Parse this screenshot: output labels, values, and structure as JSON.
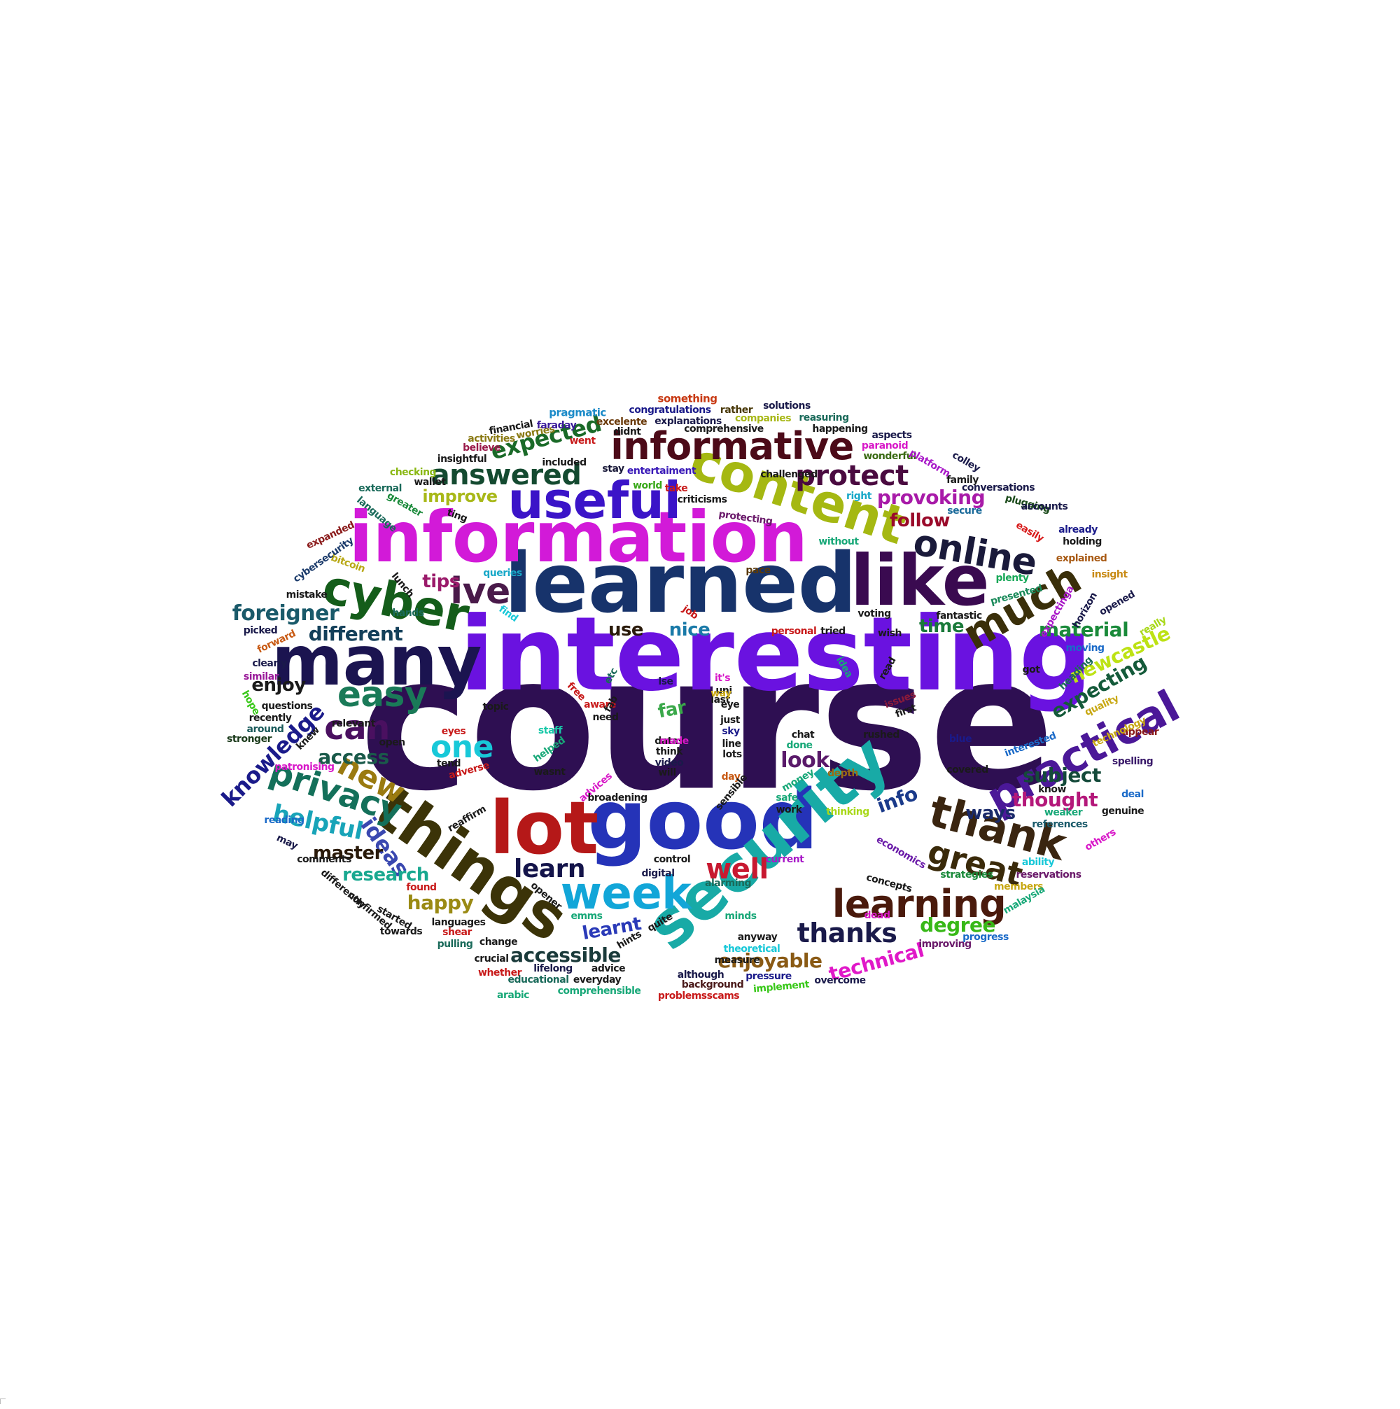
{
  "words": [
    {
      "t": "course",
      "c": "#2e0f52"
    },
    {
      "t": "interesting",
      "c": "#6a12e0"
    },
    {
      "t": "learned",
      "c": "#17336b"
    },
    {
      "t": "information",
      "c": "#d21ad8"
    },
    {
      "t": "good",
      "c": "#2533b8"
    },
    {
      "t": "security",
      "c": "#18aaa6"
    },
    {
      "t": "things",
      "c": "#3b3308"
    },
    {
      "t": "lot",
      "c": "#b51818"
    },
    {
      "t": "like",
      "c": "#3a0a50"
    },
    {
      "t": "many",
      "c": "#1b1450"
    },
    {
      "t": "useful",
      "c": "#3b14c8"
    },
    {
      "t": "content",
      "c": "#a5b812"
    },
    {
      "t": "informative",
      "c": "#4c0a18"
    },
    {
      "t": "cyber",
      "c": "#145d1a"
    },
    {
      "t": "practical",
      "c": "#4b1898"
    },
    {
      "t": "much",
      "c": "#3a2f0a"
    },
    {
      "t": "online",
      "c": "#1a1a3a"
    },
    {
      "t": "thank",
      "c": "#3a2510"
    },
    {
      "t": "week",
      "c": "#12a6d8"
    },
    {
      "t": "learning",
      "c": "#4a1a0c"
    },
    {
      "t": "easy",
      "c": "#1a7a58"
    },
    {
      "t": "ive",
      "c": "#4a1a4a"
    },
    {
      "t": "privacy",
      "c": "#14705a"
    },
    {
      "t": "can",
      "c": "#4a1060"
    },
    {
      "t": "new",
      "c": "#9a7a10"
    },
    {
      "t": "great",
      "c": "#3a2a0a"
    },
    {
      "t": "one",
      "c": "#18c8d8"
    },
    {
      "t": "protect",
      "c": "#4a0a40"
    },
    {
      "t": "answered",
      "c": "#144a30"
    },
    {
      "t": "knowledge",
      "c": "#1a1a8a"
    },
    {
      "t": "well",
      "c": "#c81830"
    },
    {
      "t": "thanks",
      "c": "#1a1a4a"
    },
    {
      "t": "learn",
      "c": "#14144a"
    },
    {
      "t": "helpful",
      "c": "#18a4b8"
    },
    {
      "t": "ideas",
      "c": "#3a48b0"
    },
    {
      "t": "expected",
      "c": "#1a6a28"
    },
    {
      "t": "provoking",
      "c": "#a81aa8"
    },
    {
      "t": "newcastle",
      "c": "#bde214"
    },
    {
      "t": "expecting",
      "c": "#145a3a"
    },
    {
      "t": "technical",
      "c": "#e018c8"
    },
    {
      "t": "foreigner",
      "c": "#1a5a6a"
    },
    {
      "t": "different",
      "c": "#14405a"
    },
    {
      "t": "material",
      "c": "#1a8a3a"
    },
    {
      "t": "thought",
      "c": "#b4187a"
    },
    {
      "t": "subject",
      "c": "#144a3a"
    },
    {
      "t": "enjoyable",
      "c": "#8a5a14"
    },
    {
      "t": "accessible",
      "c": "#1a3a3a"
    },
    {
      "t": "degree",
      "c": "#38b818"
    },
    {
      "t": "research",
      "c": "#18a890"
    },
    {
      "t": "master",
      "c": "#2a1a0a"
    },
    {
      "t": "happy",
      "c": "#9a8a14"
    },
    {
      "t": "look",
      "c": "#5a1a6a"
    },
    {
      "t": "info",
      "c": "#1a3a8a"
    },
    {
      "t": "ways",
      "c": "#1a2a6a"
    },
    {
      "t": "tips",
      "c": "#9a1a6a"
    },
    {
      "t": "access",
      "c": "#1a5a4a"
    },
    {
      "t": "enjoy",
      "c": "#1a1a1a"
    },
    {
      "t": "far",
      "c": "#3aa84a"
    },
    {
      "t": "nice",
      "c": "#1a7aa8"
    },
    {
      "t": "use",
      "c": "#2a1a0a"
    },
    {
      "t": "learnt",
      "c": "#2a3ab8"
    },
    {
      "t": "improve",
      "c": "#a8b818"
    },
    {
      "t": "follow",
      "c": "#9a0a2a"
    },
    {
      "t": "time",
      "c": "#1a7a3a"
    }
  ],
  "small_words": [
    {
      "t": "something",
      "c": "#c83a14"
    },
    {
      "t": "pragmatic",
      "c": "#1a8ac8"
    },
    {
      "t": "congratulations",
      "c": "#1a1a8a"
    },
    {
      "t": "rather",
      "c": "#4a3a0a"
    },
    {
      "t": "solutions",
      "c": "#1a1a4a"
    },
    {
      "t": "excelente",
      "c": "#6a3a0a"
    },
    {
      "t": "explanations",
      "c": "#1a1a4a"
    },
    {
      "t": "companies",
      "c": "#a8b818"
    },
    {
      "t": "reasuring",
      "c": "#1a6a5a"
    },
    {
      "t": "worries",
      "c": "#8a7a14"
    },
    {
      "t": "faraday",
      "c": "#3a1a9a"
    },
    {
      "t": "comprehensive",
      "c": "#1a1a1a"
    },
    {
      "t": "happening",
      "c": "#1a1a1a"
    },
    {
      "t": "aspects",
      "c": "#1a1a4a"
    },
    {
      "t": "believe",
      "c": "#9a1a4a"
    },
    {
      "t": "went",
      "c": "#c81a1a"
    },
    {
      "t": "didnt",
      "c": "#1a1a1a"
    },
    {
      "t": "paranoid",
      "c": "#d818c8"
    },
    {
      "t": "wonderful",
      "c": "#3a6a14"
    },
    {
      "t": "insightful",
      "c": "#1a1a1a"
    },
    {
      "t": "included",
      "c": "#1a1a1a"
    },
    {
      "t": "stay",
      "c": "#1a1a3a"
    },
    {
      "t": "entertaiment",
      "c": "#3a1ab8"
    },
    {
      "t": "challenged",
      "c": "#1a1a1a"
    },
    {
      "t": "checking",
      "c": "#8ab814"
    },
    {
      "t": "wallet",
      "c": "#1a1a1a"
    },
    {
      "t": "world",
      "c": "#38a818"
    },
    {
      "t": "take",
      "c": "#c81a1a"
    },
    {
      "t": "right",
      "c": "#18a8c8"
    },
    {
      "t": "family",
      "c": "#1a1a1a"
    },
    {
      "t": "external",
      "c": "#1a6a5a"
    },
    {
      "t": "criticisms",
      "c": "#1a1a1a"
    },
    {
      "t": "protecting",
      "c": "#6a1a6a"
    },
    {
      "t": "secure",
      "c": "#1a6a9a"
    },
    {
      "t": "plugging",
      "c": "#1a4a1a"
    },
    {
      "t": "accounts",
      "c": "#1a1a4a"
    },
    {
      "t": "expanded",
      "c": "#8a1a1a"
    },
    {
      "t": "bitcoin",
      "c": "#b8a814"
    },
    {
      "t": "cybersecurity",
      "c": "#1a3a6a"
    },
    {
      "t": "without",
      "c": "#18a878"
    },
    {
      "t": "easily",
      "c": "#d81a1a"
    },
    {
      "t": "already",
      "c": "#1a1a8a"
    },
    {
      "t": "holding",
      "c": "#1a1a1a"
    },
    {
      "t": "explained",
      "c": "#a85a14"
    },
    {
      "t": "insight",
      "c": "#c88a14"
    },
    {
      "t": "queries",
      "c": "#18a8c8"
    },
    {
      "t": "pace",
      "c": "#5a3a0a"
    },
    {
      "t": "plenty",
      "c": "#18a858"
    },
    {
      "t": "presented",
      "c": "#1a8a5a"
    },
    {
      "t": "mistake",
      "c": "#1a1a1a"
    },
    {
      "t": "picked",
      "c": "#1a1a4a"
    },
    {
      "t": "forward",
      "c": "#c85a14"
    },
    {
      "t": "find",
      "c": "#18c8d8"
    },
    {
      "t": "job",
      "c": "#c81a1a"
    },
    {
      "t": "voting",
      "c": "#1a1a1a"
    },
    {
      "t": "fantastic",
      "c": "#1a1a1a"
    },
    {
      "t": "opened",
      "c": "#1a1a4a"
    },
    {
      "t": "personal",
      "c": "#c81a1a"
    },
    {
      "t": "tried",
      "c": "#1a1a1a"
    },
    {
      "t": "wish",
      "c": "#1a1a1a"
    },
    {
      "t": "really",
      "c": "#a8d818"
    },
    {
      "t": "moving",
      "c": "#1a6ac8"
    },
    {
      "t": "clearly",
      "c": "#1a1a4a"
    },
    {
      "t": "similar",
      "c": "#9a1a9a"
    },
    {
      "t": "idea",
      "c": "#18a878"
    },
    {
      "t": "read",
      "c": "#1a1a1a"
    },
    {
      "t": "got",
      "c": "#1a1a1a"
    },
    {
      "t": "hope",
      "c": "#38c818"
    },
    {
      "t": "free",
      "c": "#c81a1a"
    },
    {
      "t": "lse",
      "c": "#1a1a4a"
    },
    {
      "t": "it's",
      "c": "#d818c8"
    },
    {
      "t": "issues",
      "c": "#8a1a3a"
    },
    {
      "t": "quality",
      "c": "#c8a814"
    },
    {
      "t": "questions",
      "c": "#1a1a1a"
    },
    {
      "t": "recently",
      "c": "#1a1a1a"
    },
    {
      "t": "around",
      "c": "#1a5a5a"
    },
    {
      "t": "stronger",
      "c": "#1a3a1a"
    },
    {
      "t": "aware",
      "c": "#c81a1a"
    },
    {
      "t": "topic",
      "c": "#1a1a1a"
    },
    {
      "t": "need",
      "c": "#1a1a1a"
    },
    {
      "t": "eye",
      "c": "#1a1a1a"
    },
    {
      "t": "just",
      "c": "#1a1a1a"
    },
    {
      "t": "first",
      "c": "#1a1a1a"
    },
    {
      "t": "datas",
      "c": "#1a1a1a"
    },
    {
      "t": "sky",
      "c": "#1a1a8a"
    },
    {
      "t": "appear",
      "c": "#8a1a1a"
    },
    {
      "t": "technology",
      "c": "#c8a814"
    },
    {
      "t": "relevant",
      "c": "#1a1a1a"
    },
    {
      "t": "eyes",
      "c": "#c81a1a"
    },
    {
      "t": "staff",
      "c": "#18c8a8"
    },
    {
      "t": "think",
      "c": "#1a1a1a"
    },
    {
      "t": "line",
      "c": "#1a1a1a"
    },
    {
      "t": "chat",
      "c": "#1a1a1a"
    },
    {
      "t": "rushed",
      "c": "#1a1a1a"
    },
    {
      "t": "blue",
      "c": "#1a1a8a"
    },
    {
      "t": "interested",
      "c": "#1a6ac8"
    },
    {
      "t": "open",
      "c": "#1a1a1a"
    },
    {
      "t": "helped",
      "c": "#18a878"
    },
    {
      "t": "made",
      "c": "#d818c8"
    },
    {
      "t": "lots",
      "c": "#1a1a1a"
    },
    {
      "t": "done",
      "c": "#18a878"
    },
    {
      "t": "spelling",
      "c": "#3a1a6a"
    },
    {
      "t": "patronising",
      "c": "#d818c8"
    },
    {
      "t": "tend",
      "c": "#1a1a1a"
    },
    {
      "t": "video",
      "c": "#1a1a4a"
    },
    {
      "t": "money",
      "c": "#18a878"
    },
    {
      "t": "depth",
      "c": "#9a6a14"
    },
    {
      "t": "covered",
      "c": "#1a1a1a"
    },
    {
      "t": "know",
      "c": "#1a1a1a"
    },
    {
      "t": "adverse",
      "c": "#c81a1a"
    },
    {
      "t": "wasnt",
      "c": "#1a1a1a"
    },
    {
      "t": "will",
      "c": "#1a1a1a"
    },
    {
      "t": "day",
      "c": "#c85a14"
    },
    {
      "t": "advices",
      "c": "#d818c8"
    },
    {
      "t": "safe",
      "c": "#18a878"
    },
    {
      "t": "sensible",
      "c": "#1a1a1a"
    },
    {
      "t": "work",
      "c": "#1a1a1a"
    },
    {
      "t": "deal",
      "c": "#1a6ac8"
    },
    {
      "t": "broadening",
      "c": "#1a1a1a"
    },
    {
      "t": "weaker",
      "c": "#18a878"
    },
    {
      "t": "genuine",
      "c": "#1a1a1a"
    },
    {
      "t": "reading",
      "c": "#1a6ac8"
    },
    {
      "t": "reaffirm",
      "c": "#1a1a1a"
    },
    {
      "t": "thinking",
      "c": "#a8d818"
    },
    {
      "t": "references",
      "c": "#1a5a6a"
    },
    {
      "t": "may",
      "c": "#1a1a4a"
    },
    {
      "t": "current",
      "c": "#a818c8"
    },
    {
      "t": "economics",
      "c": "#6a1aa8"
    },
    {
      "t": "others",
      "c": "#d818c8"
    },
    {
      "t": "comments",
      "c": "#1a1a1a"
    },
    {
      "t": "control",
      "c": "#1a1a1a"
    },
    {
      "t": "digital",
      "c": "#1a1a4a"
    },
    {
      "t": "concepts",
      "c": "#1a1a1a"
    },
    {
      "t": "ability",
      "c": "#18c8d8"
    },
    {
      "t": "reservations",
      "c": "#6a1a6a"
    },
    {
      "t": "differently",
      "c": "#1a1a1a"
    },
    {
      "t": "found",
      "c": "#c81a1a"
    },
    {
      "t": "opener",
      "c": "#1a1a1a"
    },
    {
      "t": "alarming",
      "c": "#1a6a5a"
    },
    {
      "t": "strategies",
      "c": "#1a8a3a"
    },
    {
      "t": "members",
      "c": "#c8a814"
    },
    {
      "t": "confirmed",
      "c": "#1a1a1a"
    },
    {
      "t": "started",
      "c": "#1a1a1a"
    },
    {
      "t": "emms",
      "c": "#18a878"
    },
    {
      "t": "quite",
      "c": "#1a1a1a"
    },
    {
      "t": "minds",
      "c": "#18a878"
    },
    {
      "t": "dead",
      "c": "#d818c8"
    },
    {
      "t": "malaysia",
      "c": "#18a878"
    },
    {
      "t": "towards",
      "c": "#1a1a1a"
    },
    {
      "t": "languages",
      "c": "#1a1a1a"
    },
    {
      "t": "shear",
      "c": "#c81a1a"
    },
    {
      "t": "hints",
      "c": "#1a1a1a"
    },
    {
      "t": "anyway",
      "c": "#1a1a1a"
    },
    {
      "t": "improving",
      "c": "#6a1a6a"
    },
    {
      "t": "progress",
      "c": "#1a6ac8"
    },
    {
      "t": "change",
      "c": "#1a1a1a"
    },
    {
      "t": "pulling",
      "c": "#1a6a5a"
    },
    {
      "t": "crucial",
      "c": "#1a1a1a"
    },
    {
      "t": "theoretical",
      "c": "#18c8d8"
    },
    {
      "t": "lifelong",
      "c": "#1a1a4a"
    },
    {
      "t": "advice",
      "c": "#1a1a1a"
    },
    {
      "t": "whether",
      "c": "#c81a1a"
    },
    {
      "t": "although",
      "c": "#1a1a4a"
    },
    {
      "t": "pressure",
      "c": "#1a1a8a"
    },
    {
      "t": "educational",
      "c": "#1a6a5a"
    },
    {
      "t": "everyday",
      "c": "#1a1a1a"
    },
    {
      "t": "background",
      "c": "#4a1a1a"
    },
    {
      "t": "implement",
      "c": "#38c818"
    },
    {
      "t": "overcome",
      "c": "#1a1a4a"
    },
    {
      "t": "comprehensible",
      "c": "#18a878"
    },
    {
      "t": "problemsscams",
      "c": "#c81a1a"
    },
    {
      "t": "arabic",
      "c": "#18a878"
    },
    {
      "t": "knew",
      "c": "#1a1a1a"
    },
    {
      "t": "lunch",
      "c": "#1a1a1a"
    },
    {
      "t": "hands",
      "c": "#1a6a5a"
    },
    {
      "t": "language",
      "c": "#1a6a5a"
    },
    {
      "t": "greater",
      "c": "#1a8a3a"
    },
    {
      "t": "ting",
      "c": "#1a1a1a"
    },
    {
      "t": "activities",
      "c": "#8a7a14"
    },
    {
      "t": "financial",
      "c": "#1a1a1a"
    },
    {
      "t": "platform",
      "c": "#a818c8"
    },
    {
      "t": "colley",
      "c": "#1a1a4a"
    },
    {
      "t": "conversations",
      "c": "#1a1a4a"
    },
    {
      "t": "expectinga",
      "c": "#a818c8"
    },
    {
      "t": "horizon",
      "c": "#1a1a4a"
    },
    {
      "t": "heading",
      "c": "#1a6a5a"
    },
    {
      "t": "uni",
      "c": "#1a1a1a"
    },
    {
      "t": "last",
      "c": "#1a1a1a"
    },
    {
      "t": "way",
      "c": "#c8a814"
    },
    {
      "t": "measure",
      "c": "#1a1a1a"
    },
    {
      "t": "etc",
      "c": "#1a6a5a"
    },
    {
      "t": "fab",
      "c": "#1a1a1a"
    }
  ]
}
